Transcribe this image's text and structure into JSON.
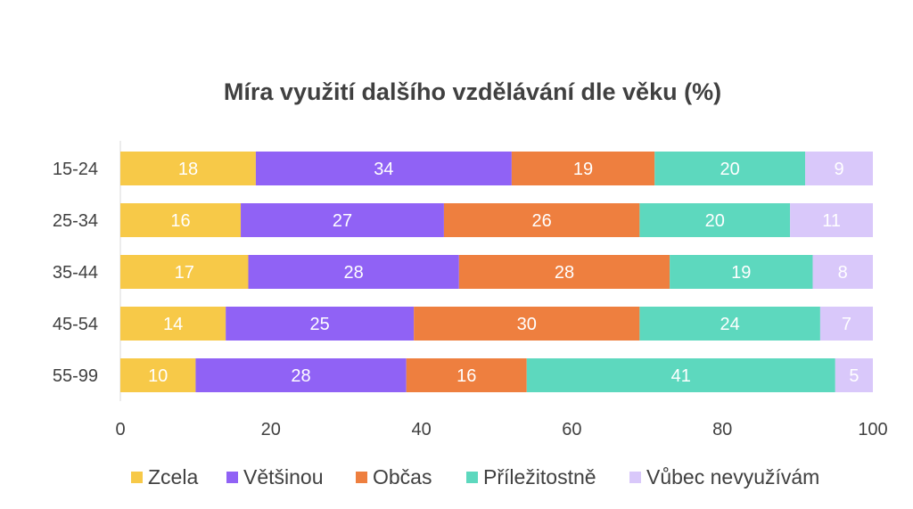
{
  "chart_data": {
    "type": "bar",
    "orientation": "horizontal",
    "stacked": true,
    "title": "Míra využití dalšího vzdělávání dle věku (%)",
    "categories": [
      "15-24",
      "25-34",
      "35-44",
      "45-54",
      "55-99"
    ],
    "series": [
      {
        "name": "Zcela",
        "color": "#F7C948",
        "values": [
          18,
          16,
          17,
          14,
          10
        ]
      },
      {
        "name": "Většinou",
        "color": "#9062F5",
        "values": [
          34,
          27,
          28,
          25,
          28
        ]
      },
      {
        "name": "Občas",
        "color": "#EE7F3F",
        "values": [
          19,
          26,
          28,
          30,
          16
        ]
      },
      {
        "name": "Příležitostně",
        "color": "#5DD8BE",
        "values": [
          20,
          20,
          19,
          24,
          41
        ]
      },
      {
        "name": "Vůbec nevyužívám",
        "color": "#D9C8FA",
        "values": [
          9,
          11,
          8,
          7,
          5
        ]
      }
    ],
    "xlim": [
      0,
      100
    ],
    "xticks": [
      0,
      20,
      40,
      60,
      80,
      100
    ],
    "grid": false,
    "legend_position": "bottom"
  }
}
